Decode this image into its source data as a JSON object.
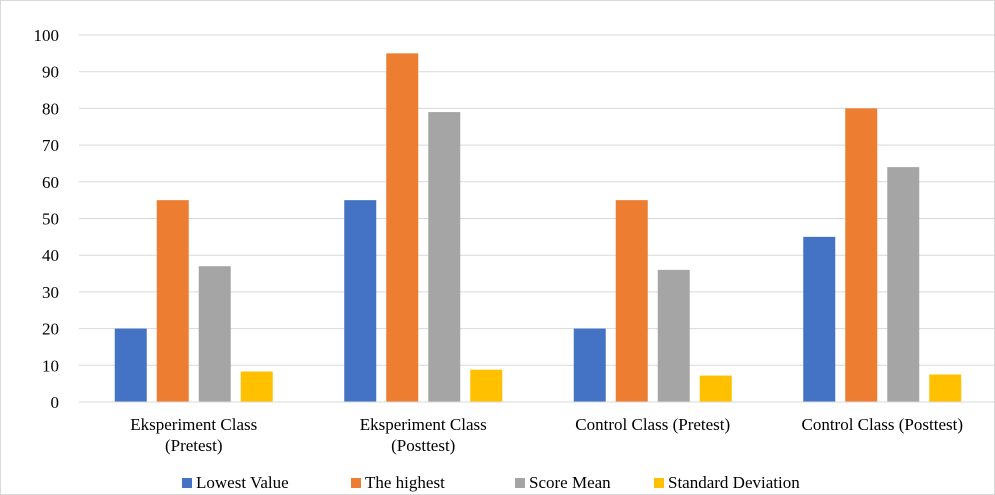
{
  "chart_data": {
    "type": "bar",
    "title": "",
    "xlabel": "",
    "ylabel": "",
    "ylim": [
      0,
      100
    ],
    "yticks": [
      0,
      10,
      20,
      30,
      40,
      50,
      60,
      70,
      80,
      90,
      100
    ],
    "grid": true,
    "legend_position": "bottom",
    "categories": [
      [
        "Eksperiment Class",
        "(Pretest)"
      ],
      [
        "Eksperiment Class",
        "(Posttest)"
      ],
      [
        "Control Class (Pretest)"
      ],
      [
        "Control Class (Posttest)"
      ]
    ],
    "series": [
      {
        "name": "Lowest Value",
        "color": "#4472C4",
        "values": [
          20,
          55,
          20,
          45
        ]
      },
      {
        "name": "The highest",
        "color": "#ED7D31",
        "values": [
          55,
          95,
          55,
          80
        ]
      },
      {
        "name": "Score Mean",
        "color": "#A5A5A5",
        "values": [
          37,
          79,
          36,
          64
        ]
      },
      {
        "name": "Standard Deviation",
        "color": "#FFC000",
        "values": [
          8.3,
          8.8,
          7.2,
          7.5
        ]
      }
    ]
  }
}
